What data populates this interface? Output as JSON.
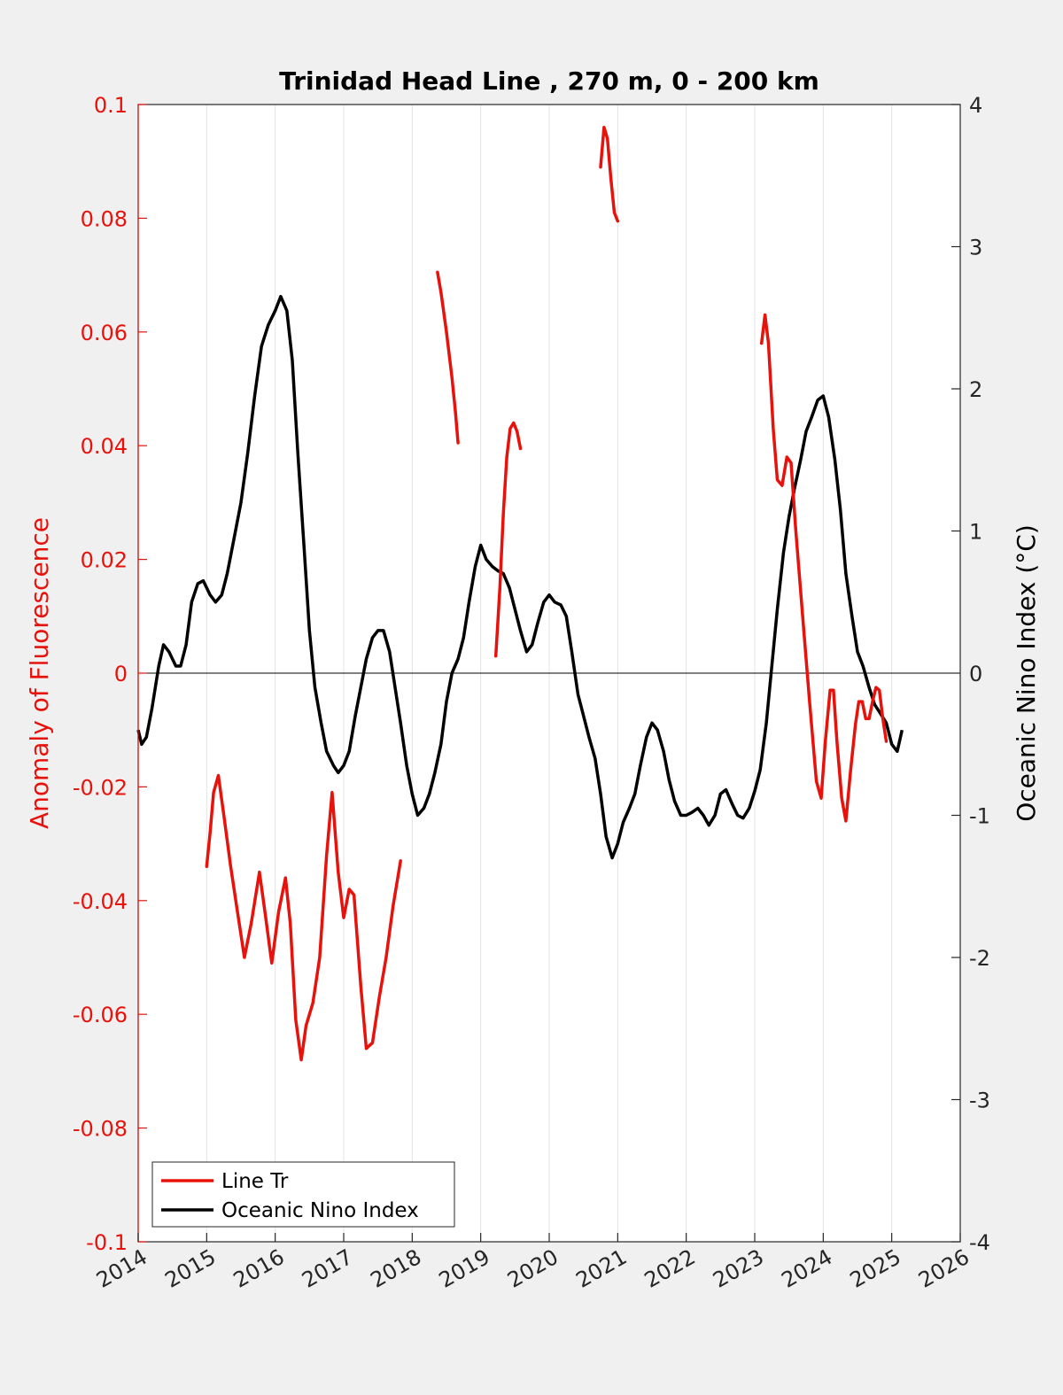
{
  "chart_data": {
    "type": "line",
    "title": "Trinidad Head Line , 270 m, 0 - 200 km",
    "xlabel": "",
    "ylabel_left": "Anomaly of Fluorescence",
    "ylabel_right": "Oceanic Nino Index (°C)",
    "xlim": [
      2014,
      2026
    ],
    "ylim_left": [
      -0.1,
      0.1
    ],
    "ylim_right": [
      -4,
      4
    ],
    "x_ticks": [
      "2014",
      "2015",
      "2016",
      "2017",
      "2018",
      "2019",
      "2020",
      "2021",
      "2022",
      "2023",
      "2024",
      "2025",
      "2026"
    ],
    "y_ticks_left": [
      "-0.1",
      "-0.08",
      "-0.06",
      "-0.04",
      "-0.02",
      "0",
      "0.02",
      "0.04",
      "0.06",
      "0.08",
      "0.1"
    ],
    "y_ticks_right": [
      "-4",
      "-3",
      "-2",
      "-1",
      "0",
      "1",
      "2",
      "3",
      "4"
    ],
    "grid": "vertical",
    "legend_position": "bottom-left",
    "colors": {
      "line_tr": "#e8120c",
      "oni": "#000000",
      "left_axis": "#e8120c",
      "right_axis": "#000000"
    },
    "series": [
      {
        "name": "Line Tr",
        "axis": "left",
        "segments": [
          [
            [
              2015.0,
              -0.034
            ],
            [
              2015.05,
              -0.028
            ],
            [
              2015.1,
              -0.021
            ],
            [
              2015.17,
              -0.018
            ],
            [
              2015.25,
              -0.025
            ],
            [
              2015.35,
              -0.034
            ],
            [
              2015.45,
              -0.042
            ],
            [
              2015.55,
              -0.05
            ],
            [
              2015.65,
              -0.044
            ],
            [
              2015.77,
              -0.035
            ],
            [
              2015.85,
              -0.042
            ],
            [
              2015.95,
              -0.051
            ],
            [
              2016.05,
              -0.042
            ],
            [
              2016.15,
              -0.036
            ],
            [
              2016.22,
              -0.044
            ],
            [
              2016.3,
              -0.061
            ],
            [
              2016.38,
              -0.068
            ],
            [
              2016.45,
              -0.062
            ],
            [
              2016.55,
              -0.058
            ],
            [
              2016.65,
              -0.05
            ],
            [
              2016.75,
              -0.032
            ],
            [
              2016.83,
              -0.021
            ],
            [
              2016.92,
              -0.035
            ],
            [
              2017.0,
              -0.043
            ],
            [
              2017.08,
              -0.038
            ],
            [
              2017.15,
              -0.039
            ],
            [
              2017.25,
              -0.055
            ],
            [
              2017.33,
              -0.066
            ],
            [
              2017.42,
              -0.065
            ],
            [
              2017.52,
              -0.057
            ],
            [
              2017.62,
              -0.05
            ],
            [
              2017.72,
              -0.041
            ],
            [
              2017.83,
              -0.033
            ]
          ],
          [
            [
              2018.37,
              0.0705
            ],
            [
              2018.42,
              0.067
            ],
            [
              2018.5,
              0.06
            ],
            [
              2018.58,
              0.052
            ],
            [
              2018.63,
              0.046
            ],
            [
              2018.67,
              0.0405
            ]
          ],
          [
            [
              2019.22,
              0.003
            ],
            [
              2019.28,
              0.015
            ],
            [
              2019.33,
              0.028
            ],
            [
              2019.38,
              0.038
            ],
            [
              2019.43,
              0.043
            ],
            [
              2019.48,
              0.044
            ],
            [
              2019.53,
              0.0425
            ],
            [
              2019.58,
              0.0395
            ]
          ],
          [
            [
              2020.75,
              0.089
            ],
            [
              2020.8,
              0.096
            ],
            [
              2020.85,
              0.094
            ],
            [
              2020.9,
              0.087
            ],
            [
              2020.95,
              0.081
            ],
            [
              2021.0,
              0.0795
            ]
          ],
          [
            [
              2023.1,
              0.058
            ],
            [
              2023.15,
              0.063
            ],
            [
              2023.2,
              0.058
            ],
            [
              2023.27,
              0.043
            ],
            [
              2023.33,
              0.034
            ],
            [
              2023.4,
              0.033
            ],
            [
              2023.47,
              0.038
            ],
            [
              2023.53,
              0.037
            ],
            [
              2023.6,
              0.025
            ],
            [
              2023.7,
              0.01
            ],
            [
              2023.8,
              -0.005
            ],
            [
              2023.9,
              -0.019
            ],
            [
              2023.97,
              -0.022
            ],
            [
              2024.03,
              -0.012
            ],
            [
              2024.1,
              -0.003
            ],
            [
              2024.15,
              -0.003
            ],
            [
              2024.2,
              -0.012
            ],
            [
              2024.27,
              -0.022
            ],
            [
              2024.33,
              -0.026
            ],
            [
              2024.4,
              -0.017
            ],
            [
              2024.47,
              -0.009
            ],
            [
              2024.52,
              -0.005
            ],
            [
              2024.57,
              -0.005
            ],
            [
              2024.62,
              -0.008
            ],
            [
              2024.67,
              -0.008
            ],
            [
              2024.72,
              -0.005
            ],
            [
              2024.77,
              -0.0025
            ],
            [
              2024.82,
              -0.003
            ],
            [
              2024.87,
              -0.008
            ],
            [
              2024.92,
              -0.012
            ]
          ]
        ]
      },
      {
        "name": "Oceanic Nino Index",
        "axis": "right",
        "points": [
          [
            2014.0,
            -0.4
          ],
          [
            2014.05,
            -0.5
          ],
          [
            2014.12,
            -0.45
          ],
          [
            2014.2,
            -0.25
          ],
          [
            2014.3,
            0.05
          ],
          [
            2014.37,
            0.2
          ],
          [
            2014.45,
            0.15
          ],
          [
            2014.55,
            0.05
          ],
          [
            2014.62,
            0.05
          ],
          [
            2014.7,
            0.2
          ],
          [
            2014.78,
            0.5
          ],
          [
            2014.87,
            0.63
          ],
          [
            2014.95,
            0.65
          ],
          [
            2015.05,
            0.55
          ],
          [
            2015.13,
            0.5
          ],
          [
            2015.22,
            0.55
          ],
          [
            2015.3,
            0.7
          ],
          [
            2015.4,
            0.95
          ],
          [
            2015.5,
            1.2
          ],
          [
            2015.6,
            1.55
          ],
          [
            2015.7,
            1.95
          ],
          [
            2015.8,
            2.3
          ],
          [
            2015.9,
            2.45
          ],
          [
            2016.0,
            2.55
          ],
          [
            2016.08,
            2.65
          ],
          [
            2016.17,
            2.55
          ],
          [
            2016.25,
            2.2
          ],
          [
            2016.33,
            1.55
          ],
          [
            2016.42,
            0.9
          ],
          [
            2016.5,
            0.3
          ],
          [
            2016.58,
            -0.1
          ],
          [
            2016.67,
            -0.35
          ],
          [
            2016.75,
            -0.55
          ],
          [
            2016.85,
            -0.65
          ],
          [
            2016.92,
            -0.7
          ],
          [
            2017.0,
            -0.65
          ],
          [
            2017.08,
            -0.55
          ],
          [
            2017.17,
            -0.3
          ],
          [
            2017.25,
            -0.1
          ],
          [
            2017.33,
            0.1
          ],
          [
            2017.42,
            0.25
          ],
          [
            2017.5,
            0.3
          ],
          [
            2017.58,
            0.3
          ],
          [
            2017.67,
            0.15
          ],
          [
            2017.75,
            -0.1
          ],
          [
            2017.83,
            -0.35
          ],
          [
            2017.92,
            -0.65
          ],
          [
            2018.0,
            -0.85
          ],
          [
            2018.08,
            -1.0
          ],
          [
            2018.17,
            -0.95
          ],
          [
            2018.25,
            -0.85
          ],
          [
            2018.33,
            -0.7
          ],
          [
            2018.42,
            -0.5
          ],
          [
            2018.5,
            -0.2
          ],
          [
            2018.58,
            0.0
          ],
          [
            2018.67,
            0.1
          ],
          [
            2018.75,
            0.25
          ],
          [
            2018.83,
            0.5
          ],
          [
            2018.92,
            0.75
          ],
          [
            2019.0,
            0.9
          ],
          [
            2019.08,
            0.8
          ],
          [
            2019.17,
            0.75
          ],
          [
            2019.25,
            0.72
          ],
          [
            2019.33,
            0.7
          ],
          [
            2019.42,
            0.6
          ],
          [
            2019.5,
            0.45
          ],
          [
            2019.58,
            0.3
          ],
          [
            2019.67,
            0.15
          ],
          [
            2019.75,
            0.2
          ],
          [
            2019.83,
            0.35
          ],
          [
            2019.92,
            0.5
          ],
          [
            2020.0,
            0.55
          ],
          [
            2020.08,
            0.5
          ],
          [
            2020.17,
            0.48
          ],
          [
            2020.25,
            0.4
          ],
          [
            2020.33,
            0.15
          ],
          [
            2020.42,
            -0.15
          ],
          [
            2020.5,
            -0.3
          ],
          [
            2020.58,
            -0.45
          ],
          [
            2020.67,
            -0.6
          ],
          [
            2020.75,
            -0.85
          ],
          [
            2020.83,
            -1.15
          ],
          [
            2020.92,
            -1.3
          ],
          [
            2021.0,
            -1.2
          ],
          [
            2021.08,
            -1.05
          ],
          [
            2021.17,
            -0.95
          ],
          [
            2021.25,
            -0.85
          ],
          [
            2021.33,
            -0.65
          ],
          [
            2021.42,
            -0.45
          ],
          [
            2021.5,
            -0.35
          ],
          [
            2021.58,
            -0.4
          ],
          [
            2021.67,
            -0.55
          ],
          [
            2021.75,
            -0.75
          ],
          [
            2021.83,
            -0.9
          ],
          [
            2021.92,
            -1.0
          ],
          [
            2022.0,
            -1.0
          ],
          [
            2022.08,
            -0.98
          ],
          [
            2022.17,
            -0.95
          ],
          [
            2022.25,
            -1.0
          ],
          [
            2022.33,
            -1.07
          ],
          [
            2022.42,
            -1.0
          ],
          [
            2022.5,
            -0.85
          ],
          [
            2022.58,
            -0.82
          ],
          [
            2022.67,
            -0.92
          ],
          [
            2022.75,
            -1.0
          ],
          [
            2022.83,
            -1.02
          ],
          [
            2022.92,
            -0.95
          ],
          [
            2023.0,
            -0.83
          ],
          [
            2023.08,
            -0.68
          ],
          [
            2023.17,
            -0.35
          ],
          [
            2023.25,
            0.05
          ],
          [
            2023.33,
            0.45
          ],
          [
            2023.42,
            0.85
          ],
          [
            2023.5,
            1.1
          ],
          [
            2023.58,
            1.3
          ],
          [
            2023.67,
            1.5
          ],
          [
            2023.75,
            1.7
          ],
          [
            2023.83,
            1.8
          ],
          [
            2023.92,
            1.92
          ],
          [
            2024.0,
            1.95
          ],
          [
            2024.08,
            1.8
          ],
          [
            2024.17,
            1.5
          ],
          [
            2024.25,
            1.15
          ],
          [
            2024.33,
            0.7
          ],
          [
            2024.42,
            0.4
          ],
          [
            2024.5,
            0.15
          ],
          [
            2024.58,
            0.05
          ],
          [
            2024.67,
            -0.1
          ],
          [
            2024.75,
            -0.22
          ],
          [
            2024.83,
            -0.28
          ],
          [
            2024.92,
            -0.35
          ],
          [
            2025.0,
            -0.5
          ],
          [
            2025.08,
            -0.55
          ],
          [
            2025.15,
            -0.4
          ]
        ]
      }
    ]
  }
}
